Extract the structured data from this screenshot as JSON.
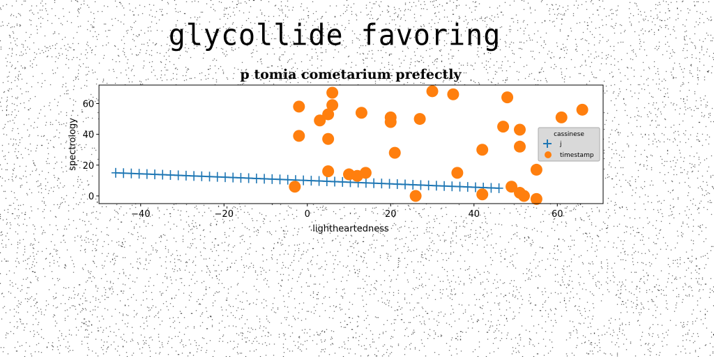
{
  "suptitle": "glycollide favoring",
  "chart_data": {
    "type": "scatter",
    "title": "p tomia cometarium prefectly",
    "xlabel": "lightheartedness",
    "ylabel": "spectrology",
    "xlim": [
      -50,
      71
    ],
    "ylim": [
      -5,
      72
    ],
    "xticks": [
      -40,
      -20,
      0,
      20,
      40,
      60
    ],
    "yticks": [
      0,
      20,
      40,
      60
    ],
    "legend": {
      "title": "cassinese",
      "placement": "center-right"
    },
    "grid": false,
    "series": [
      {
        "name": "j",
        "marker": "plus",
        "color": "#1f77b4",
        "line": true,
        "x_range": [
          -46,
          46
        ],
        "n_points": 50,
        "y_range": [
          15,
          5
        ]
      },
      {
        "name": "timestamp",
        "marker": "circle",
        "color": "#ff7f0e",
        "points": [
          [
            -2,
            58
          ],
          [
            -2,
            39
          ],
          [
            3,
            49
          ],
          [
            5,
            53
          ],
          [
            5,
            37
          ],
          [
            6,
            67
          ],
          [
            6,
            59
          ],
          [
            5,
            16
          ],
          [
            13,
            54
          ],
          [
            20,
            51
          ],
          [
            20,
            48
          ],
          [
            21,
            28
          ],
          [
            27,
            50
          ],
          [
            30,
            68
          ],
          [
            35,
            66
          ],
          [
            36,
            15
          ],
          [
            10,
            14
          ],
          [
            12,
            13
          ],
          [
            14,
            15
          ],
          [
            -3,
            6
          ],
          [
            26,
            0
          ],
          [
            42,
            30
          ],
          [
            42,
            1
          ],
          [
            47,
            45
          ],
          [
            48,
            64
          ],
          [
            49,
            6
          ],
          [
            51,
            43
          ],
          [
            51,
            32
          ],
          [
            51,
            2
          ],
          [
            52,
            0
          ],
          [
            55,
            17
          ],
          [
            55,
            -2
          ],
          [
            61,
            51
          ],
          [
            66,
            56
          ]
        ]
      }
    ]
  }
}
